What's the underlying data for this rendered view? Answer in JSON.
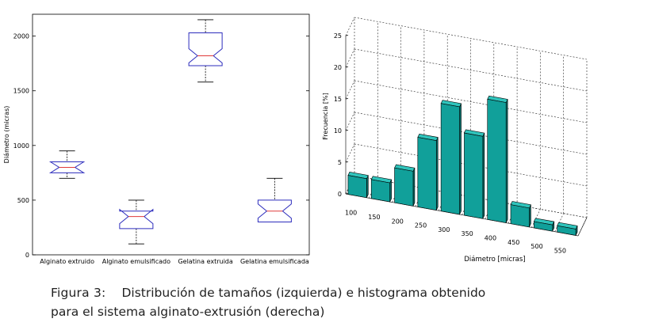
{
  "caption": {
    "label": "Figura 3:",
    "text_line1": "Distribución de tamaños (izquierda) e histograma obtenido",
    "text_line2": "para el sistema alginato-extrusión (derecha)"
  },
  "colors": {
    "box": "#2d2dbd",
    "median": "#e03a3a",
    "bar_front": "#11a09a",
    "bar_side": "#0a706b",
    "bar_top": "#2fc4bc"
  },
  "chart_data": [
    {
      "type": "box",
      "ylabel": "Diámetro (micras)",
      "xlabel": "",
      "ylim": [
        0,
        2200
      ],
      "yticks": [
        0,
        500,
        1000,
        1500,
        2000
      ],
      "categories": [
        "Alginato extruido",
        "Alginato emulsificado",
        "Gelatina extruida",
        "Gelatina emulsificada"
      ],
      "boxes": [
        {
          "whisker_low": 700,
          "q1": 750,
          "median": 800,
          "q3": 850,
          "whisker_high": 950
        },
        {
          "whisker_low": 100,
          "q1": 240,
          "median": 350,
          "q3": 400,
          "whisker_high": 500
        },
        {
          "whisker_low": 1580,
          "q1": 1730,
          "median": 1820,
          "q3": 2030,
          "whisker_high": 2150
        },
        {
          "whisker_low": 300,
          "q1": 300,
          "median": 400,
          "q3": 500,
          "whisker_high": 700
        }
      ],
      "grid": false
    },
    {
      "type": "bar",
      "ylabel": "Frecuencia [%]",
      "xlabel": "Diámetro [micras]",
      "ylim": [
        0,
        25
      ],
      "yticks": [
        0,
        5,
        10,
        15,
        20,
        25
      ],
      "categories": [
        "100",
        "150",
        "200",
        "250",
        "300",
        "350",
        "400",
        "450",
        "500",
        "550"
      ],
      "values": [
        3,
        3,
        5.5,
        11,
        17,
        13,
        19,
        3,
        1,
        1
      ],
      "grid": true
    }
  ]
}
